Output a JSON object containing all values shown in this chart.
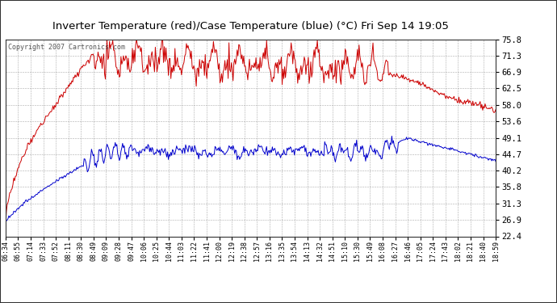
{
  "title": "Inverter Temperature (red)/Case Temperature (blue) (°C) Fri Sep 14 19:05",
  "copyright": "Copyright 2007 Cartronics.com",
  "ylabel_right_ticks": [
    75.8,
    71.3,
    66.9,
    62.5,
    58.0,
    53.6,
    49.1,
    44.7,
    40.2,
    35.8,
    31.3,
    26.9,
    22.4
  ],
  "ymin": 22.4,
  "ymax": 75.8,
  "plot_bg_color": "#ffffff",
  "fig_bg_color": "#ffffff",
  "grid_color": "#aaaaaa",
  "red_line_color": "#cc0000",
  "blue_line_color": "#0000cc",
  "tick_label_color": "#000000",
  "x_tick_labels": [
    "06:34",
    "06:55",
    "07:14",
    "07:33",
    "07:52",
    "08:11",
    "08:30",
    "08:49",
    "09:09",
    "09:28",
    "09:47",
    "10:06",
    "10:25",
    "10:44",
    "11:03",
    "11:22",
    "11:41",
    "12:00",
    "12:19",
    "12:38",
    "12:57",
    "13:16",
    "13:35",
    "13:54",
    "14:13",
    "14:32",
    "14:51",
    "15:10",
    "15:30",
    "15:49",
    "16:08",
    "16:27",
    "16:46",
    "17:05",
    "17:24",
    "17:43",
    "18:02",
    "18:21",
    "18:40",
    "18:59"
  ],
  "n_points": 600
}
